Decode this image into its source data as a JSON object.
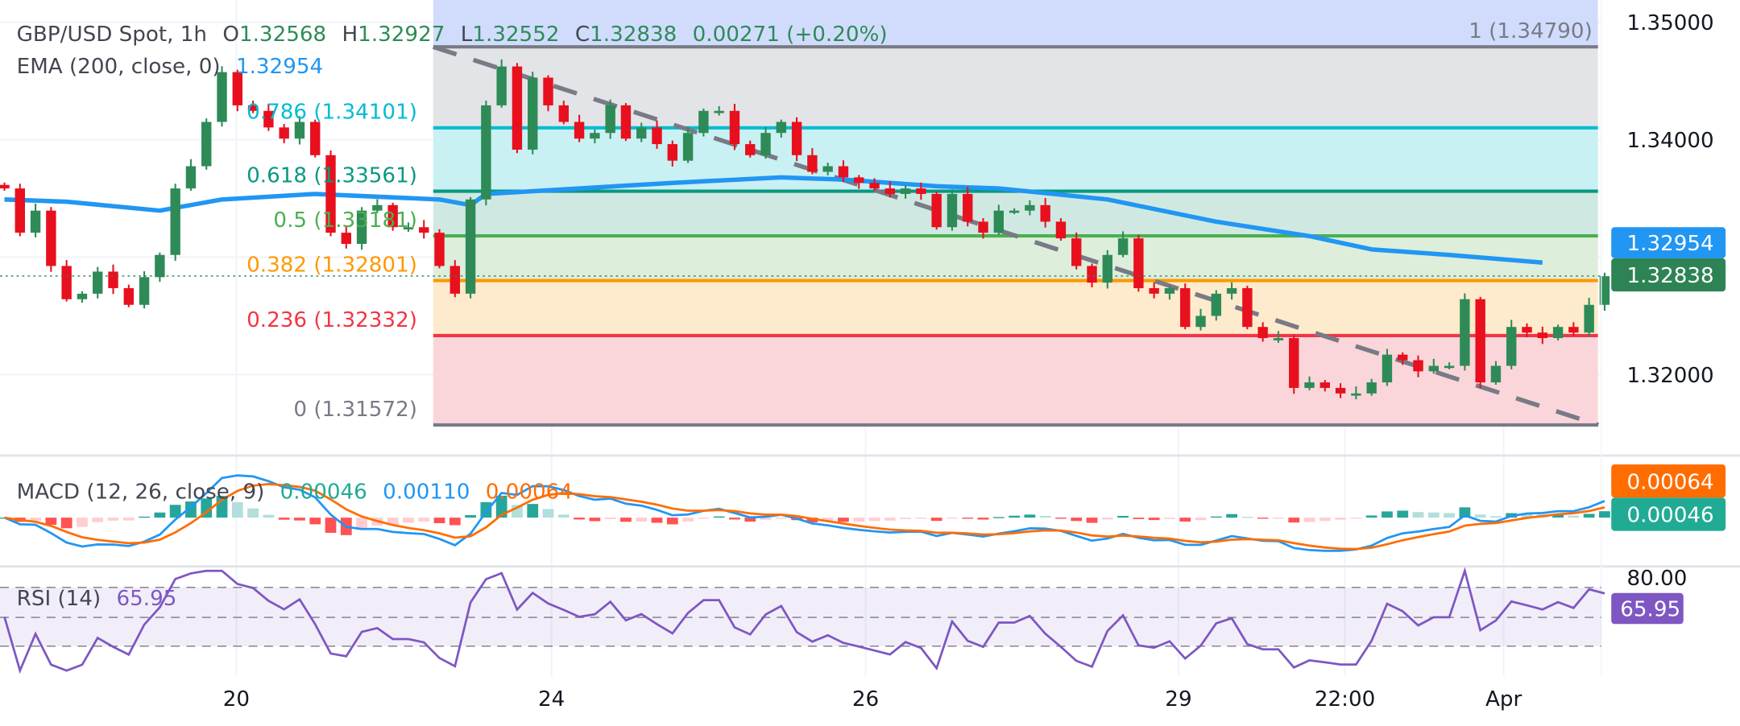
{
  "header": {
    "symbol": "GBP/USD Spot, 1h",
    "o_prefix": "O",
    "o": "1.32568",
    "h_prefix": "H",
    "h": "1.32927",
    "l_prefix": "L",
    "l": "1.32552",
    "c_prefix": "C",
    "c": "1.32838",
    "change": "0.00271 (+0.20%)"
  },
  "ema_legend": {
    "label": "EMA (200, close, 0)",
    "value": "1.32954"
  },
  "macd_legend": {
    "label": "MACD (12, 26, close, 9)",
    "histogram": "0.00046",
    "macd": "0.00110",
    "signal": "0.00064"
  },
  "rsi_legend": {
    "label": "RSI (14)",
    "value": "65.95"
  },
  "price_axis": {
    "ticks": [
      "1.35000",
      "1.34000",
      "1.32000"
    ],
    "ema_badge": "1.32954",
    "last_badge": "1.32838"
  },
  "macd_axis": {
    "signal_badge": "0.00064",
    "histogram_badge": "0.00046"
  },
  "rsi_axis": {
    "top_tick": "80.00",
    "badge": "65.95"
  },
  "time_axis": {
    "labels": [
      "20",
      "24",
      "26",
      "29",
      "22:00",
      "Apr"
    ]
  },
  "colors": {
    "up": "#2e8b57",
    "down": "#e8101e",
    "ema": "#2196f3",
    "trendline": "#787b86",
    "macd": "#2196f3",
    "signal": "#ff6d00",
    "hist_up": "#26a69a",
    "hist_down": "#ff5252",
    "rsi": "#7e57c2",
    "last_price": "#2e8355",
    "histogram_badge": "#22ab94"
  },
  "chart_data": [
    {
      "type": "candlestick",
      "title": "GBP/USD Spot, 1h",
      "ylim": [
        1.3135,
        1.3519
      ],
      "closes": [
        1.33585,
        1.33208,
        1.33396,
        1.32925,
        1.32642,
        1.32689,
        1.32877,
        1.32736,
        1.32594,
        1.3283,
        1.33019,
        1.33585,
        1.33774,
        1.34151,
        1.34575,
        1.34292,
        1.34245,
        1.34104,
        1.34009,
        1.34151,
        1.33868,
        1.33208,
        1.33113,
        1.33396,
        1.33443,
        1.33255,
        1.33255,
        1.33208,
        1.32925,
        1.32689,
        1.33491,
        1.34292,
        1.34623,
        1.33915,
        1.34528,
        1.34292,
        1.34151,
        1.34009,
        1.34057,
        1.34292,
        1.34009,
        1.34104,
        1.33962,
        1.33821,
        1.34057,
        1.34245,
        1.34245,
        1.33962,
        1.33868,
        1.34057,
        1.34151,
        1.33868,
        1.33726,
        1.33774,
        1.33679,
        1.33632,
        1.33585,
        1.33538,
        1.33585,
        1.33538,
        1.33255,
        1.33538,
        1.33302,
        1.33208,
        1.33396,
        1.33396,
        1.33443,
        1.33302,
        1.3316,
        1.32925,
        1.32783,
        1.33019,
        1.3316,
        1.32736,
        1.32689,
        1.32736,
        1.32406,
        1.325,
        1.32689,
        1.32736,
        1.32406,
        1.32311,
        1.32311,
        1.31887,
        1.31934,
        1.31887,
        1.3184,
        1.3184,
        1.31934,
        1.3217,
        1.32123,
        1.32028,
        1.32075,
        1.32075,
        1.32642,
        1.31934,
        1.32075,
        1.32406,
        1.32358,
        1.32311,
        1.32406,
        1.32358,
        1.32594,
        1.32838
      ],
      "ema_200": [
        [
          0,
          1.33491
        ],
        [
          4,
          1.33472
        ],
        [
          10,
          1.33396
        ],
        [
          14,
          1.33491
        ],
        [
          20,
          1.33538
        ],
        [
          28,
          1.33491
        ],
        [
          30,
          1.33443
        ],
        [
          31,
          1.33538
        ],
        [
          37,
          1.33585
        ],
        [
          43,
          1.33632
        ],
        [
          50,
          1.33679
        ],
        [
          54,
          1.3366
        ],
        [
          60,
          1.33604
        ],
        [
          64,
          1.33585
        ],
        [
          71,
          1.33491
        ],
        [
          78,
          1.33302
        ],
        [
          84,
          1.33179
        ],
        [
          88,
          1.33066
        ],
        [
          93,
          1.33019
        ],
        [
          99,
          1.32954
        ]
      ],
      "trendline": [
        [
          27.6,
          1.3479
        ],
        [
          102.6,
          1.31572
        ]
      ],
      "fib_retracement": {
        "range_candles": [
          27.6,
          102.6
        ],
        "levels": [
          {
            "ratio": "1",
            "price": 1.3479,
            "label": "1 (1.34790)",
            "color": "#787b86",
            "fill": "#e3e4e7"
          },
          {
            "ratio": "0.786",
            "price": 1.34101,
            "label": "0.786 (1.34101)",
            "color": "#00bcd4",
            "fill": "#c9f0f3"
          },
          {
            "ratio": "0.618",
            "price": 1.33561,
            "label": "0.618 (1.33561)",
            "color": "#089981",
            "fill": "#cfe9e2"
          },
          {
            "ratio": "0.5",
            "price": 1.33181,
            "label": "0.5 (1.33181)",
            "color": "#4caf50",
            "fill": "#ddeedb"
          },
          {
            "ratio": "0.382",
            "price": 1.32801,
            "label": "0.382 (1.32801)",
            "color": "#ff9800",
            "fill": "#feeacc"
          },
          {
            "ratio": "0.236",
            "price": 1.32332,
            "label": "0.236 (1.32332)",
            "color": "#f23645",
            "fill": "#fad6da"
          },
          {
            "ratio": "0",
            "price": 1.31572,
            "label": "0 (1.31572)",
            "color": "#787b86",
            "fill": ""
          }
        ],
        "upper_fill": "#d1dcfd"
      }
    },
    {
      "type": "line",
      "title": "MACD (12, 26, close, 9)",
      "last": {
        "histogram": 0.00046,
        "macd": 0.0011,
        "signal": 0.00064
      }
    },
    {
      "type": "line",
      "title": "RSI (14)",
      "last": 65.95,
      "bands": [
        30,
        50,
        70
      ]
    }
  ]
}
